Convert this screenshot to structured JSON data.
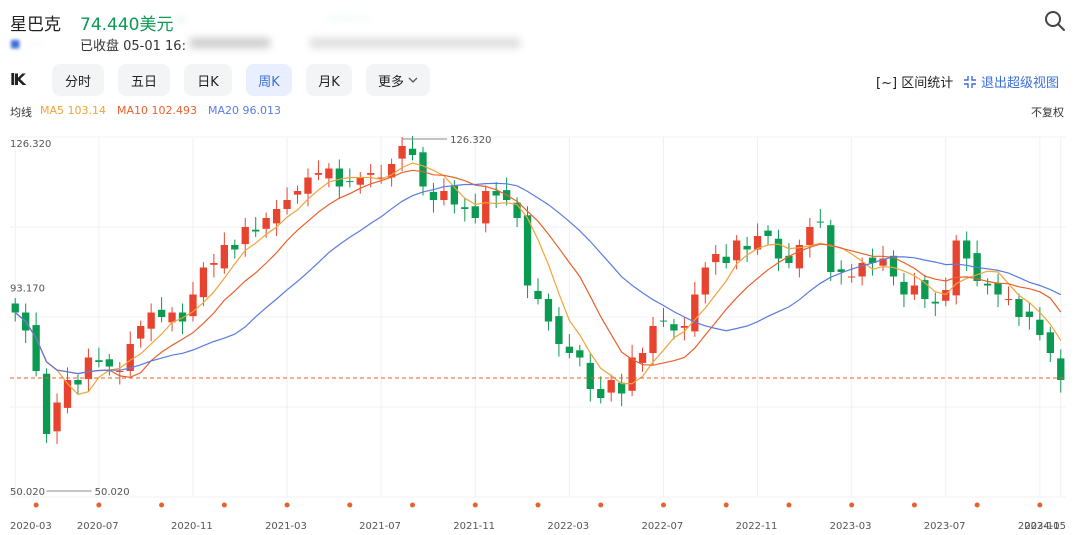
{
  "header": {
    "stock_name": "星巴克",
    "price_text": "74.440美元",
    "change_text": "-",
    "status_text": "已收盘 05-01 16:"
  },
  "icons": {
    "search": "search-icon",
    "range_stats": "range-bracket-icon",
    "exit_fullscreen": "shrink-view-icon",
    "kline_logo": "kline-icon"
  },
  "toolbar": {
    "logo": "lK",
    "tabs": [
      {
        "label": "分时",
        "active": false
      },
      {
        "label": "五日",
        "active": false
      },
      {
        "label": "日K",
        "active": false
      },
      {
        "label": "周K",
        "active": true
      },
      {
        "label": "月K",
        "active": false
      },
      {
        "label": "更多",
        "active": false
      }
    ],
    "range_stats_label": "区间统计",
    "range_stats_glyph": "[~]",
    "exit_label": "退出超级视图"
  },
  "ma_bar": {
    "label": "均线",
    "ma5": "MA5 103.14",
    "ma10": "MA10 102.493",
    "ma20": "MA20 96.013",
    "adjust": "不复权"
  },
  "colors": {
    "up": "#e8432e",
    "down": "#0a9a52",
    "ma5": "#f2a33a",
    "ma10": "#e8612c",
    "ma20": "#5b7be0",
    "grid": "#f0f0f0",
    "accent": "#3a6fd8"
  },
  "chart_data": {
    "type": "candlestick",
    "period": "weekly",
    "y_axis_labels": [
      "126.320",
      "50.020"
    ],
    "y_mid_label": "93.170",
    "high_marker": "126.320",
    "low_marker": "50.020",
    "ylim": [
      48,
      128
    ],
    "current_price": 74.44,
    "x_tick_labels": [
      "2020-03",
      "2020-07",
      "2020-11",
      "2021-03",
      "2021-07",
      "2021-11",
      "2022-03",
      "2022-07",
      "2022-11",
      "2023-03",
      "2023-07",
      "2023-11",
      "2024-05"
    ],
    "closes": [
      89,
      85,
      76,
      62,
      69,
      74,
      73,
      79,
      78,
      77,
      76,
      82,
      86,
      89,
      88,
      89,
      87,
      93,
      99,
      100,
      104,
      103,
      108,
      107,
      110,
      112,
      114,
      116,
      119,
      120,
      121,
      117,
      118,
      119,
      120,
      119,
      122,
      126,
      124,
      117,
      114,
      116,
      113,
      112,
      110,
      116,
      115,
      114,
      110,
      95,
      92,
      87,
      82,
      80,
      79,
      72,
      70,
      74,
      71,
      79,
      80,
      86,
      87,
      85,
      86,
      93,
      99,
      102,
      100,
      105,
      103,
      106,
      106,
      101,
      100,
      104,
      108,
      109,
      98,
      98,
      97,
      100,
      100,
      101,
      97,
      93,
      95,
      92,
      91,
      94,
      105,
      101,
      96,
      95,
      93,
      92,
      88,
      88,
      84,
      80,
      74
    ],
    "x_tick_index": [
      0,
      8,
      17,
      26,
      35,
      44,
      53,
      62,
      71,
      80,
      89,
      98,
      100
    ]
  }
}
